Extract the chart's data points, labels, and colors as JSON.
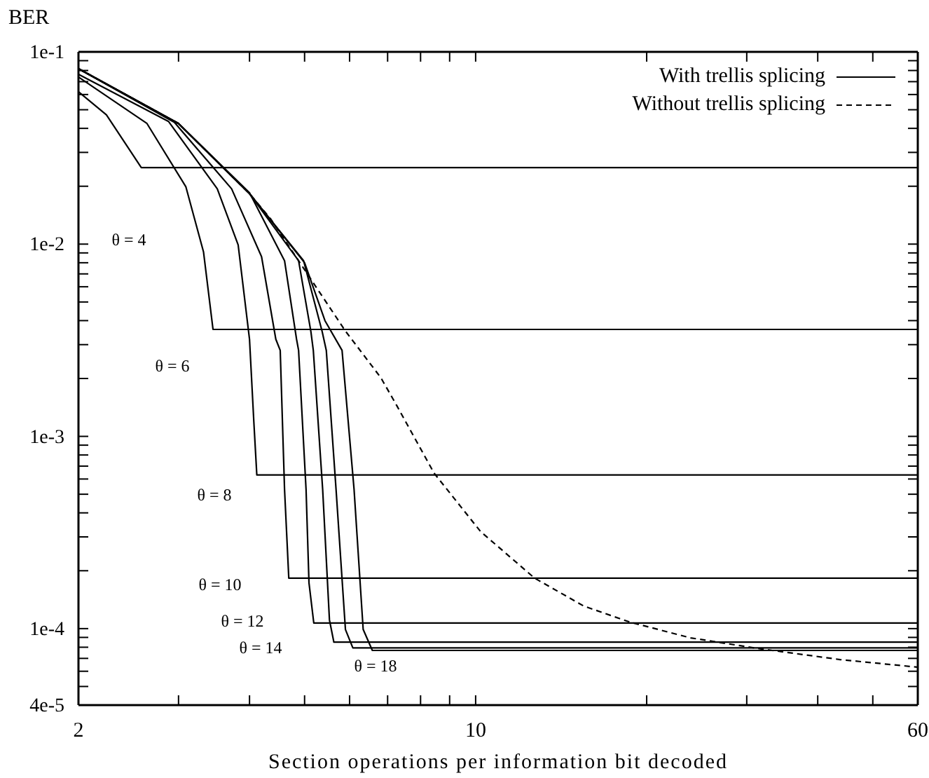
{
  "chart_data": {
    "type": "line",
    "ylabel": "BER",
    "xlabel": "Section operations per information bit decoded",
    "log": "xy",
    "grid": false,
    "legend": "top right",
    "marker": "none",
    "xlim": [
      2,
      60
    ],
    "ylim": [
      4e-05,
      0.1
    ],
    "xticks": [
      2,
      {
        "value": 3,
        "label": null
      },
      {
        "value": 4,
        "label": null
      },
      {
        "value": 5,
        "label": null
      },
      {
        "value": 6,
        "label": null
      },
      {
        "value": 7,
        "label": null
      },
      {
        "value": 8,
        "label": null
      },
      {
        "value": 9,
        "label": null
      },
      10,
      {
        "value": 20,
        "label": null
      },
      {
        "value": 30,
        "label": null
      },
      {
        "value": 40,
        "label": null
      },
      {
        "value": 50,
        "label": null
      },
      60
    ],
    "yticks": [
      {
        "value": 4e-05,
        "label": "4e-5"
      },
      {
        "value": 5e-05,
        "label": null
      },
      {
        "value": 6e-05,
        "label": null
      },
      {
        "value": 7e-05,
        "label": null
      },
      {
        "value": 8e-05,
        "label": null
      },
      {
        "value": 9e-05,
        "label": null
      },
      {
        "value": 0.0001,
        "label": "1e-4"
      },
      {
        "value": 0.0002,
        "label": null
      },
      {
        "value": 0.0003,
        "label": null
      },
      {
        "value": 0.0004,
        "label": null
      },
      {
        "value": 0.0005,
        "label": null
      },
      {
        "value": 0.0006,
        "label": null
      },
      {
        "value": 0.0007,
        "label": null
      },
      {
        "value": 0.0008,
        "label": null
      },
      {
        "value": 0.0009,
        "label": null
      },
      {
        "value": 0.001,
        "label": "1e-3"
      },
      {
        "value": 0.002,
        "label": null
      },
      {
        "value": 0.003,
        "label": null
      },
      {
        "value": 0.004,
        "label": null
      },
      {
        "value": 0.005,
        "label": null
      },
      {
        "value": 0.006,
        "label": null
      },
      {
        "value": 0.007,
        "label": null
      },
      {
        "value": 0.008,
        "label": null
      },
      {
        "value": 0.009,
        "label": null
      },
      {
        "value": 0.01,
        "label": "1e-2"
      },
      {
        "value": 0.02,
        "label": null
      },
      {
        "value": 0.03,
        "label": null
      },
      {
        "value": 0.04,
        "label": null
      },
      {
        "value": 0.05,
        "label": null
      },
      {
        "value": 0.06,
        "label": null
      },
      {
        "value": 0.07,
        "label": null
      },
      {
        "value": 0.08,
        "label": null
      },
      {
        "value": 0.09,
        "label": null
      },
      {
        "value": 0.1,
        "label": "1e-1"
      }
    ],
    "series": [
      {
        "name": "With trellis splicing",
        "color": "#000000",
        "line_style": "solid",
        "x": [
          2,
          2.24,
          2.58,
          60
        ],
        "values": [
          0.062,
          0.047,
          0.025,
          0.025
        ]
      },
      {
        "color": "#000000",
        "line_style": "solid",
        "x": [
          2,
          2.64,
          3.09,
          3.32,
          3.45,
          60
        ],
        "values": [
          0.074,
          0.0424,
          0.0199,
          0.0091,
          0.0036,
          0.0036
        ]
      },
      {
        "color": "#000000",
        "line_style": "solid",
        "x": [
          2,
          2.88,
          3.51,
          3.82,
          4.0,
          4.07,
          4.12,
          60
        ],
        "values": [
          0.0765,
          0.0435,
          0.0194,
          0.0099,
          0.0032,
          0.0012,
          0.00063,
          0.00063
        ]
      },
      {
        "color": "#000000",
        "line_style": "solid",
        "x": [
          2,
          2.95,
          3.72,
          4.2,
          4.45,
          4.53,
          4.61,
          4.69,
          60
        ],
        "values": [
          0.0817,
          0.043,
          0.0194,
          0.0086,
          0.0032,
          0.0028,
          0.00053,
          0.000183,
          0.000183
        ]
      },
      {
        "color": "#000000",
        "line_style": "solid",
        "x": [
          2,
          3,
          4,
          4.61,
          4.84,
          4.88,
          5.03,
          5.09,
          5.19,
          60
        ],
        "values": [
          0.0817,
          0.0424,
          0.0185,
          0.0082,
          0.0032,
          0.0028,
          0.00053,
          0.000173,
          0.000107,
          0.000107
        ]
      },
      {
        "color": "#000000",
        "line_style": "solid",
        "x": [
          2,
          3,
          4,
          4.88,
          5.13,
          5.18,
          5.38,
          5.53,
          5.63,
          60
        ],
        "values": [
          0.0817,
          0.0424,
          0.0183,
          0.0082,
          0.0035,
          0.0028,
          0.00053,
          0.000111,
          8.5e-05,
          8.5e-05
        ]
      },
      {
        "color": "#000000",
        "line_style": "solid",
        "x": [
          2,
          3,
          4,
          4.98,
          5.37,
          5.46,
          5.68,
          5.9,
          6.08,
          60
        ],
        "values": [
          0.0817,
          0.0424,
          0.0183,
          0.0082,
          0.0035,
          0.0028,
          0.00053,
          9.9e-05,
          7.94e-05,
          7.94e-05
        ]
      },
      {
        "color": "#000000",
        "line_style": "solid",
        "x": [
          2,
          3,
          4,
          5.0,
          5.43,
          5.82,
          6.11,
          6.34,
          6.58,
          60
        ],
        "values": [
          0.0817,
          0.0424,
          0.0183,
          0.008,
          0.004,
          0.0028,
          0.00053,
          9.9e-05,
          7.7e-05,
          7.7e-05
        ]
      },
      {
        "name": "Without trellis splicing",
        "color": "#000000",
        "line_style": "dashed",
        "x": [
          2,
          3,
          4,
          4.36,
          5.9,
          6.81,
          7.27,
          8.45,
          10.2,
          12.7,
          15.5,
          18.7,
          23.9,
          31.2,
          43.8,
          60
        ],
        "values": [
          0.0817,
          0.0424,
          0.0183,
          0.0135,
          0.00353,
          0.00202,
          0.00144,
          0.000644,
          0.00032,
          0.000183,
          0.000131,
          0.000108,
          8.95e-05,
          7.9e-05,
          6.9e-05,
          6.3e-05
        ]
      }
    ],
    "annotations": [
      "θ = 4",
      "θ = 6",
      "θ = 8",
      "θ = 10",
      "θ = 12",
      "θ = 14",
      "θ = 18"
    ]
  }
}
